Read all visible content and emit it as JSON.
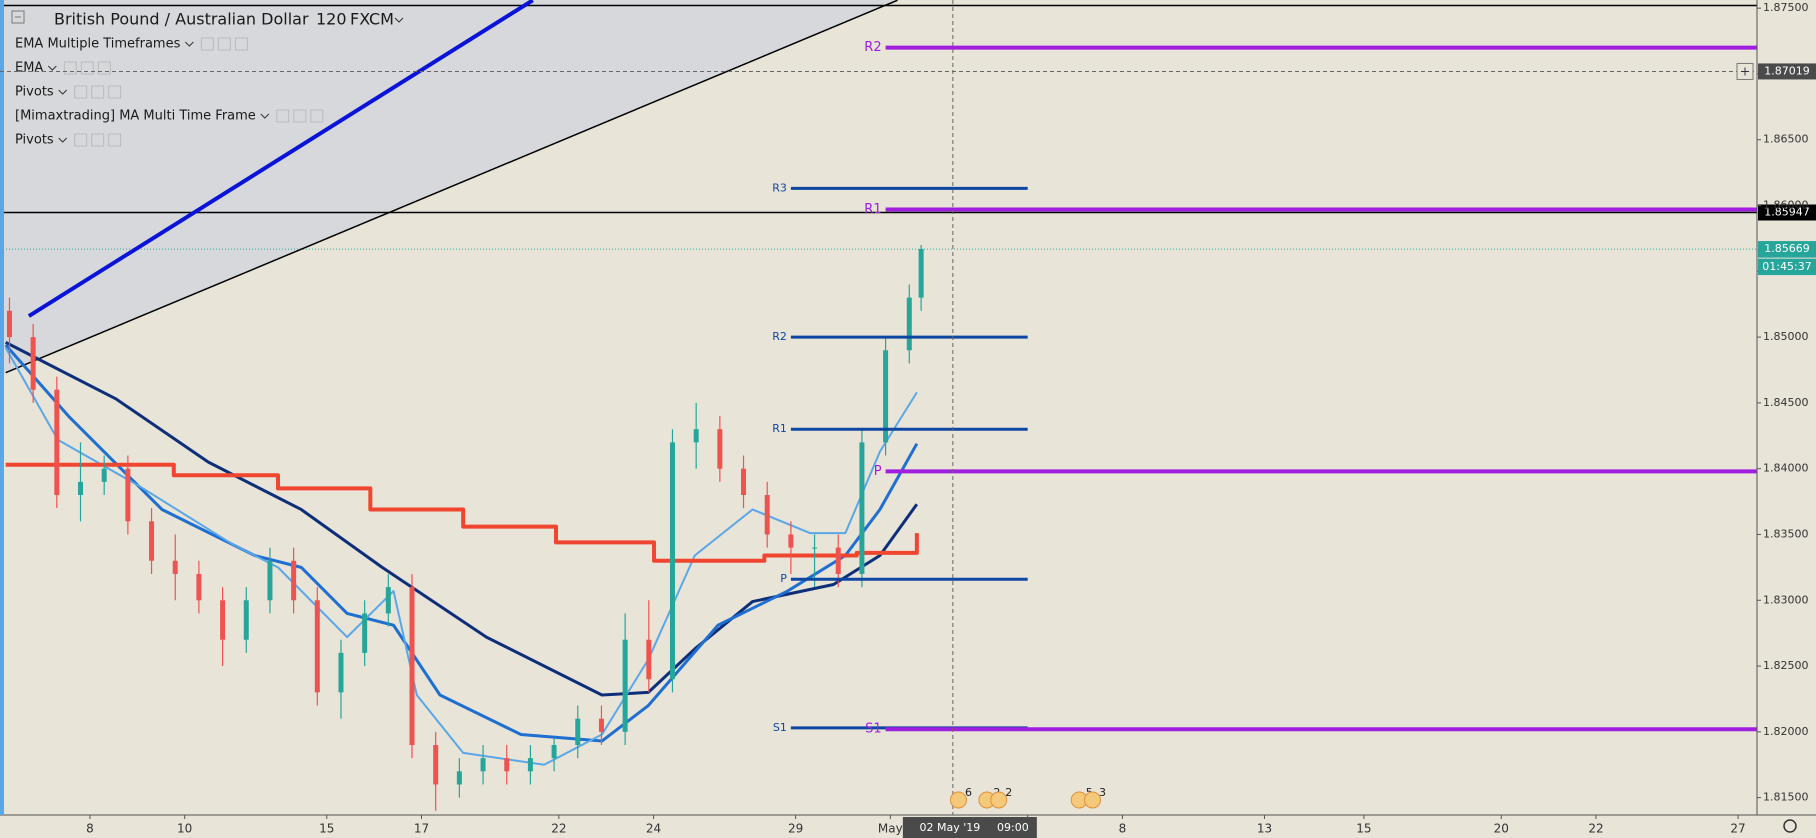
{
  "chart_data": {
    "type": "candlestick",
    "title": "British Pound / Australian Dollar",
    "interval": "120",
    "source": "FXCM",
    "indicators": [
      "EMA Multiple Timeframes",
      "EMA",
      "Pivots",
      "[Mimaxtrading] MA Multi Time Frame",
      "Pivots"
    ],
    "xlim": [
      0,
      37.1
    ],
    "ylim": [
      1.81368,
      1.87562
    ],
    "xticks": [
      {
        "value": 1.9,
        "label": "8"
      },
      {
        "value": 3.9,
        "label": "10"
      },
      {
        "value": 6.9,
        "label": "15"
      },
      {
        "value": 8.9,
        "label": "17"
      },
      {
        "value": 11.8,
        "label": "22"
      },
      {
        "value": 13.8,
        "label": "24"
      },
      {
        "value": 16.8,
        "label": "29"
      },
      {
        "value": 18.8,
        "label": "May"
      },
      {
        "value": 21.7,
        "label": "6"
      },
      {
        "value": 23.7,
        "label": "8"
      },
      {
        "value": 26.7,
        "label": "13"
      },
      {
        "value": 28.8,
        "label": "15"
      },
      {
        "value": 31.7,
        "label": "20"
      },
      {
        "value": 33.7,
        "label": "22"
      },
      {
        "value": 36.7,
        "label": "27"
      }
    ],
    "yticks": [
      {
        "value": 1.815,
        "label": "1.81500"
      },
      {
        "value": 1.82,
        "label": "1.82000"
      },
      {
        "value": 1.825,
        "label": "1.82500"
      },
      {
        "value": 1.83,
        "label": "1.83000"
      },
      {
        "value": 1.835,
        "label": "1.83500"
      },
      {
        "value": 1.84,
        "label": "1.84000"
      },
      {
        "value": 1.845,
        "label": "1.84500"
      },
      {
        "value": 1.85,
        "label": "1.85000"
      },
      {
        "value": 1.855,
        "label": "1.85500"
      },
      {
        "value": 1.86,
        "label": "1.86000"
      },
      {
        "value": 1.865,
        "label": "1.86500"
      },
      {
        "value": 1.87,
        "label": "1.87000"
      },
      {
        "value": 1.875,
        "label": "1.87500"
      }
    ],
    "up_color": "#26a69a",
    "down_color": "#ef5350",
    "x": [
      0.2,
      0.7,
      1.2,
      1.7,
      2.2,
      2.7,
      3.2,
      3.7,
      4.2,
      4.7,
      5.2,
      5.7,
      6.2,
      6.7,
      7.2,
      7.7,
      8.2,
      8.7,
      9.2,
      9.7,
      10.2,
      10.7,
      11.2,
      11.7,
      12.2,
      12.7,
      13.2,
      13.7,
      14.2,
      14.7,
      15.2,
      15.7,
      16.2,
      16.7,
      17.2,
      17.7,
      18.2,
      18.7,
      19.2,
      19.45
    ],
    "open": [
      1.852,
      1.85,
      1.846,
      1.838,
      1.839,
      1.84,
      1.836,
      1.833,
      1.832,
      1.83,
      1.827,
      1.83,
      1.833,
      1.83,
      1.823,
      1.826,
      1.829,
      1.831,
      1.819,
      1.816,
      1.817,
      1.818,
      1.817,
      1.818,
      1.819,
      1.821,
      1.82,
      1.827,
      1.824,
      1.842,
      1.843,
      1.84,
      1.838,
      1.835,
      1.834,
      1.834,
      1.832,
      1.842,
      1.849,
      1.853
    ],
    "high": [
      1.853,
      1.851,
      1.847,
      1.842,
      1.841,
      1.841,
      1.837,
      1.835,
      1.833,
      1.831,
      1.831,
      1.834,
      1.834,
      1.831,
      1.827,
      1.83,
      1.832,
      1.832,
      1.82,
      1.818,
      1.819,
      1.819,
      1.819,
      1.8195,
      1.822,
      1.822,
      1.829,
      1.83,
      1.843,
      1.845,
      1.844,
      1.841,
      1.839,
      1.836,
      1.835,
      1.835,
      1.843,
      1.85,
      1.854,
      1.857
    ],
    "low": [
      1.848,
      1.845,
      1.837,
      1.836,
      1.838,
      1.835,
      1.832,
      1.83,
      1.829,
      1.825,
      1.826,
      1.829,
      1.829,
      1.822,
      1.821,
      1.825,
      1.828,
      1.818,
      1.814,
      1.815,
      1.816,
      1.816,
      1.816,
      1.817,
      1.818,
      1.819,
      1.819,
      1.823,
      1.823,
      1.84,
      1.839,
      1.837,
      1.834,
      1.832,
      1.831,
      1.831,
      1.831,
      1.841,
      1.848,
      1.852
    ],
    "close": [
      1.85,
      1.846,
      1.838,
      1.839,
      1.84,
      1.836,
      1.833,
      1.832,
      1.83,
      1.827,
      1.83,
      1.833,
      1.83,
      1.823,
      1.826,
      1.829,
      1.831,
      1.819,
      1.816,
      1.817,
      1.818,
      1.817,
      1.818,
      1.819,
      1.821,
      1.82,
      1.827,
      1.824,
      1.842,
      1.843,
      1.84,
      1.838,
      1.835,
      1.834,
      1.834,
      1.832,
      1.842,
      1.849,
      1.853,
      1.8567
    ],
    "series": [
      {
        "color": "#0d2f7a",
        "width": 3,
        "x": [
          0.12,
          2.45,
          4.4,
          6.36,
          8.07,
          10.27,
          12.71,
          13.69,
          14.67,
          15.89,
          17.6,
          18.58,
          19.36
        ],
        "values": [
          1.8496,
          1.8453,
          1.8405,
          1.8369,
          1.8325,
          1.8272,
          1.8228,
          1.823,
          1.8263,
          1.8299,
          1.8312,
          1.8334,
          1.8373
        ]
      },
      {
        "color": "#1e6fd0",
        "width": 3,
        "x": [
          0.12,
          1.47,
          3.42,
          5.38,
          6.36,
          7.33,
          8.31,
          9.29,
          11.0,
          12.71,
          13.69,
          15.16,
          16.63,
          17.85,
          18.58,
          19.36
        ],
        "values": [
          1.8494,
          1.8439,
          1.8369,
          1.8334,
          1.8325,
          1.829,
          1.8281,
          1.8228,
          1.8198,
          1.8193,
          1.822,
          1.8281,
          1.8307,
          1.8334,
          1.8369,
          1.8419
        ]
      },
      {
        "color": "#5aa7e8",
        "width": 2,
        "x": [
          0.12,
          1.22,
          2.93,
          4.89,
          5.87,
          7.33,
          8.31,
          8.8,
          9.78,
          11.49,
          12.71,
          13.69,
          14.67,
          15.89,
          17.11,
          17.85,
          18.58,
          19.36
        ],
        "values": [
          1.8492,
          1.8422,
          1.8387,
          1.8343,
          1.8325,
          1.8272,
          1.8307,
          1.8228,
          1.8184,
          1.8175,
          1.8198,
          1.8255,
          1.8334,
          1.8369,
          1.8351,
          1.8351,
          1.8413,
          1.8458
        ]
      },
      {
        "color": "#f0452f",
        "width": 4,
        "step": true,
        "x": [
          0.12,
          3.67,
          5.87,
          7.82,
          9.78,
          11.74,
          13.81,
          16.14,
          18.09,
          19.36
        ],
        "values": [
          1.8403,
          1.8395,
          1.8385,
          1.8369,
          1.8356,
          1.8344,
          1.833,
          1.8334,
          1.8336,
          1.8351
        ]
      }
    ],
    "trendlines": [
      {
        "color": "#0a14d8",
        "width": 4,
        "x": [
          0.61,
          11.25
        ],
        "values": [
          1.8516,
          1.8756
        ]
      },
      {
        "color": "#000000",
        "width": 1.5,
        "x": [
          0.12,
          18.95
        ],
        "values": [
          1.8473,
          1.8756
        ]
      }
    ],
    "hlines": [
      {
        "value": 1.8752,
        "color": "#000000"
      },
      {
        "value": 1.85947,
        "color": "#000000",
        "label": "1.85947"
      }
    ],
    "pivots": [
      {
        "color": "#0d47a1",
        "x": [
          16.7,
          21.7
        ],
        "levels": [
          {
            "label": "R3",
            "value": 1.8613
          },
          {
            "label": "R2",
            "value": 1.85
          },
          {
            "label": "R1",
            "value": 1.843
          },
          {
            "label": "P",
            "value": 1.8316
          },
          {
            "label": "S1",
            "value": 1.8203
          }
        ]
      },
      {
        "color": "#a01ee0",
        "x": [
          18.7,
          37.1
        ],
        "levels": [
          {
            "label": "R2",
            "value": 1.872
          },
          {
            "label": "R1",
            "value": 1.8597
          },
          {
            "label": "P",
            "value": 1.8398
          },
          {
            "label": "S1",
            "value": 1.8202
          }
        ]
      }
    ],
    "last_price": {
      "value": 1.85669,
      "label": "1.85669",
      "countdown": "01:45:37"
    },
    "crosshair": {
      "x": 20.12,
      "date": "02 May '19",
      "time": "09:00",
      "y": {
        "value": 1.87019,
        "label": "1.87019"
      }
    },
    "events": [
      {
        "x": 20.45,
        "label": "6"
      },
      {
        "x": 21.05,
        "label": "2"
      },
      {
        "x": 21.3,
        "label": "2"
      },
      {
        "x": 23.0,
        "label": "5"
      },
      {
        "x": 23.28,
        "label": "3"
      }
    ]
  }
}
